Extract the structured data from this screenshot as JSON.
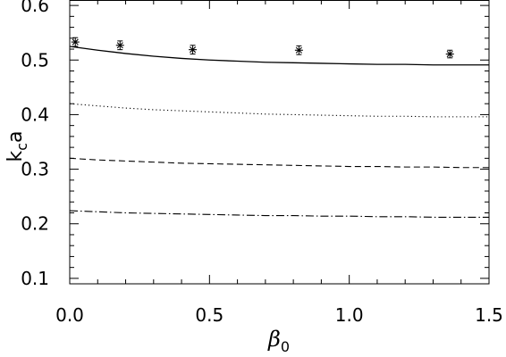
{
  "chart_data": {
    "type": "line",
    "xlabel": {
      "main": "β",
      "sub": "0"
    },
    "ylabel": {
      "main": "k",
      "sub": "c",
      "tail": "a"
    },
    "xlim": [
      0.0,
      1.5
    ],
    "ylim": [
      0.09,
      0.61
    ],
    "xticks": [
      {
        "value": 0.0,
        "label": "0.0"
      },
      {
        "value": 0.5,
        "label": "0.5"
      },
      {
        "value": 1.0,
        "label": "1.0"
      },
      {
        "value": 1.5,
        "label": "1.5"
      }
    ],
    "xminor_step": 0.1,
    "yticks": [
      {
        "value": 0.1,
        "label": "0.1"
      },
      {
        "value": 0.2,
        "label": "0.2"
      },
      {
        "value": 0.3,
        "label": "0.3"
      },
      {
        "value": 0.4,
        "label": "0.4"
      },
      {
        "value": 0.5,
        "label": "0.5"
      },
      {
        "value": 0.6,
        "label": "0.6"
      }
    ],
    "yminor_step": 0.02,
    "grid": false,
    "series": [
      {
        "style": "solid",
        "x": [
          0.0,
          0.1,
          0.2,
          0.3,
          0.4,
          0.5,
          0.6,
          0.7,
          0.8,
          0.9,
          1.0,
          1.1,
          1.2,
          1.3,
          1.4,
          1.5
        ],
        "y": [
          0.525,
          0.518,
          0.512,
          0.507,
          0.503,
          0.5,
          0.498,
          0.496,
          0.495,
          0.494,
          0.493,
          0.492,
          0.492,
          0.491,
          0.491,
          0.491
        ]
      },
      {
        "style": "dotted",
        "x": [
          0.0,
          0.1,
          0.2,
          0.3,
          0.4,
          0.5,
          0.6,
          0.7,
          0.8,
          0.9,
          1.0,
          1.1,
          1.2,
          1.3,
          1.4,
          1.5
        ],
        "y": [
          0.42,
          0.416,
          0.412,
          0.409,
          0.407,
          0.405,
          0.403,
          0.401,
          0.4,
          0.399,
          0.398,
          0.397,
          0.397,
          0.396,
          0.396,
          0.396
        ]
      },
      {
        "style": "dashed",
        "x": [
          0.0,
          0.1,
          0.2,
          0.3,
          0.4,
          0.5,
          0.6,
          0.7,
          0.8,
          0.9,
          1.0,
          1.1,
          1.2,
          1.3,
          1.4,
          1.5
        ],
        "y": [
          0.32,
          0.317,
          0.315,
          0.313,
          0.311,
          0.31,
          0.309,
          0.308,
          0.307,
          0.306,
          0.305,
          0.305,
          0.304,
          0.304,
          0.303,
          0.303
        ]
      },
      {
        "style": "dashdot",
        "x": [
          0.0,
          0.1,
          0.2,
          0.3,
          0.4,
          0.5,
          0.6,
          0.7,
          0.8,
          0.9,
          1.0,
          1.1,
          1.2,
          1.3,
          1.4,
          1.5
        ],
        "y": [
          0.224,
          0.222,
          0.22,
          0.219,
          0.218,
          0.217,
          0.216,
          0.215,
          0.215,
          0.214,
          0.214,
          0.213,
          0.213,
          0.212,
          0.212,
          0.212
        ]
      }
    ],
    "points": {
      "marker": "asterisk",
      "x": [
        0.02,
        0.18,
        0.44,
        0.82,
        1.36
      ],
      "y": [
        0.533,
        0.527,
        0.519,
        0.518,
        0.511
      ],
      "err": [
        0.008,
        0.008,
        0.008,
        0.008,
        0.007
      ]
    }
  }
}
